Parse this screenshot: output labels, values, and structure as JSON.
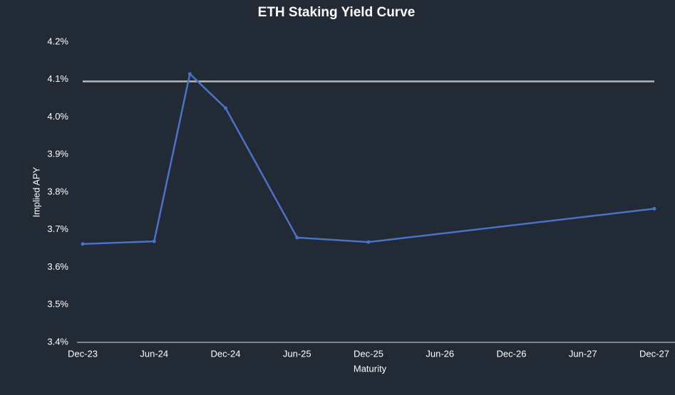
{
  "chart_data": {
    "type": "line",
    "title": "ETH Staking Yield Curve",
    "xlabel": "Maturity",
    "ylabel": "Implied APY",
    "x": [
      "2023-12",
      "2024-06",
      "2024-09",
      "2024-12",
      "2025-06",
      "2025-12",
      "2027-12"
    ],
    "series": [
      {
        "color": "#4a72c6",
        "values": [
          3.662,
          3.669,
          4.115,
          4.024,
          3.679,
          3.667,
          3.756
        ]
      }
    ],
    "reference_line": {
      "value": 4.095,
      "color": "#b8b8b8"
    },
    "xlim": [
      "2023-12",
      "2027-12"
    ],
    "xticks": [
      {
        "value": "2023-12",
        "label": "Dec-23"
      },
      {
        "value": "2024-06",
        "label": "Jun-24"
      },
      {
        "value": "2024-12",
        "label": "Dec-24"
      },
      {
        "value": "2025-06",
        "label": "Jun-25"
      },
      {
        "value": "2025-12",
        "label": "Dec-25"
      },
      {
        "value": "2026-06",
        "label": "Jun-26"
      },
      {
        "value": "2026-12",
        "label": "Dec-26"
      },
      {
        "value": "2027-06",
        "label": "Jun-27"
      },
      {
        "value": "2027-12",
        "label": "Dec-27"
      }
    ],
    "ylim": [
      3.4,
      4.2
    ],
    "yticks": [
      {
        "value": 3.4,
        "label": "3.4%"
      },
      {
        "value": 3.5,
        "label": "3.5%"
      },
      {
        "value": 3.6,
        "label": "3.6%"
      },
      {
        "value": 3.7,
        "label": "3.7%"
      },
      {
        "value": 3.8,
        "label": "3.8%"
      },
      {
        "value": 3.9,
        "label": "3.9%"
      },
      {
        "value": 4.0,
        "label": "4.0%"
      },
      {
        "value": 4.1,
        "label": "4.1%"
      },
      {
        "value": 4.2,
        "label": "4.2%"
      }
    ],
    "grid": false
  }
}
